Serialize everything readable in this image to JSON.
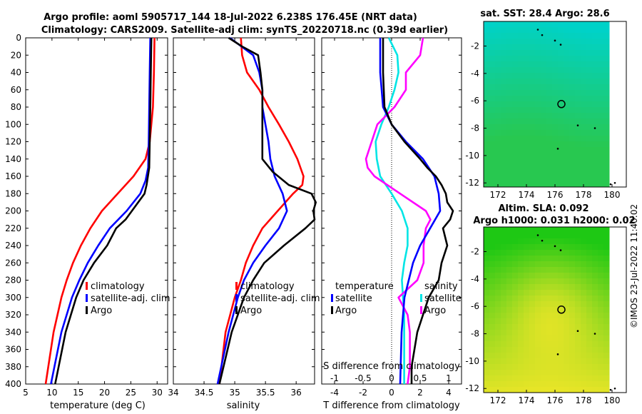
{
  "header": {
    "title_line1": "Argo profile: aoml 5905717_144 18-Jul-2022 6.238S 176.45E (NRT data)",
    "title_line2": "Climatology: CARS2009. Satellite-adj clim: synTS_20220718.nc (0.39d earlier)"
  },
  "colors": {
    "climatology": "#ff0000",
    "satellite": "#0000ff",
    "argo": "#000000",
    "s_clim": "#ff00ff",
    "s_sat": "#00e5e5"
  },
  "depth_ticks": [
    "0",
    "20",
    "40",
    "60",
    "80",
    "100",
    "120",
    "140",
    "160",
    "180",
    "200",
    "220",
    "240",
    "260",
    "280",
    "300",
    "320",
    "340",
    "360",
    "380",
    "400"
  ],
  "chart_data": [
    {
      "type": "line",
      "panel": "temperature",
      "xlabel": "temperature (deg C)",
      "ylabel": "depth",
      "xlim": [
        5,
        32
      ],
      "ylim": [
        400,
        0
      ],
      "x_ticks": [
        "5",
        "10",
        "15",
        "20",
        "25",
        "30"
      ],
      "legend": [
        "climatology",
        "satellite-adj. clim",
        "Argo"
      ],
      "series": [
        {
          "name": "climatology",
          "depth": [
            0,
            40,
            80,
            120,
            140,
            160,
            180,
            200,
            220,
            240,
            260,
            280,
            300,
            340,
            400
          ],
          "values": [
            29.5,
            29.4,
            29.2,
            28.6,
            27.8,
            25.5,
            22.5,
            19.5,
            17.3,
            15.5,
            14.0,
            12.8,
            11.8,
            10.3,
            8.8
          ]
        },
        {
          "name": "satellite-adj. clim",
          "depth": [
            0,
            40,
            80,
            120,
            150,
            165,
            180,
            200,
            220,
            240,
            260,
            280,
            300,
            340,
            400
          ],
          "values": [
            28.7,
            28.6,
            28.5,
            28.4,
            28.3,
            27.8,
            26.8,
            24.2,
            21.0,
            18.8,
            16.8,
            15.2,
            13.8,
            11.8,
            9.8
          ]
        },
        {
          "name": "Argo",
          "depth": [
            0,
            40,
            80,
            120,
            150,
            170,
            180,
            200,
            210,
            220,
            240,
            260,
            280,
            300,
            340,
            400
          ],
          "values": [
            28.9,
            28.8,
            28.7,
            28.6,
            28.5,
            28.0,
            27.6,
            25.2,
            24.0,
            22.2,
            20.5,
            18.0,
            16.0,
            14.6,
            12.6,
            10.6
          ]
        }
      ]
    },
    {
      "type": "line",
      "panel": "salinity",
      "xlabel": "salinity",
      "ylabel": "depth",
      "xlim": [
        34.0,
        36.3
      ],
      "ylim": [
        400,
        0
      ],
      "x_ticks": [
        "34",
        "34.5",
        "35",
        "35.5",
        "36"
      ],
      "legend": [
        "climatology",
        "satellite-adj. clim",
        "Argo"
      ],
      "series": [
        {
          "name": "climatology",
          "depth": [
            0,
            20,
            40,
            60,
            80,
            100,
            120,
            140,
            160,
            170,
            180,
            200,
            220,
            240,
            260,
            280,
            300,
            340,
            400
          ],
          "values": [
            35.1,
            35.12,
            35.2,
            35.4,
            35.55,
            35.72,
            35.88,
            36.02,
            36.12,
            36.1,
            35.95,
            35.7,
            35.45,
            35.3,
            35.18,
            35.1,
            35.0,
            34.85,
            34.75
          ]
        },
        {
          "name": "satellite-adj. clim",
          "depth": [
            0,
            20,
            40,
            60,
            80,
            100,
            120,
            140,
            160,
            180,
            200,
            220,
            240,
            260,
            280,
            300,
            340,
            400
          ],
          "values": [
            34.92,
            35.3,
            35.4,
            35.45,
            35.45,
            35.5,
            35.55,
            35.58,
            35.65,
            35.78,
            35.85,
            35.72,
            35.5,
            35.3,
            35.15,
            35.05,
            34.9,
            34.72
          ]
        },
        {
          "name": "Argo",
          "depth": [
            0,
            10,
            20,
            40,
            60,
            80,
            100,
            120,
            140,
            155,
            170,
            180,
            190,
            200,
            210,
            220,
            240,
            260,
            280,
            300,
            340,
            400
          ],
          "values": [
            34.9,
            35.12,
            35.38,
            35.42,
            35.45,
            35.45,
            35.45,
            35.45,
            35.45,
            35.62,
            35.88,
            36.25,
            36.32,
            36.28,
            36.3,
            36.15,
            35.8,
            35.48,
            35.3,
            35.15,
            34.95,
            34.75
          ]
        }
      ]
    },
    {
      "type": "line",
      "panel": "difference",
      "xlabel": "T difference from climatology",
      "xlabel_top": "S difference from climatology",
      "ylabel": "depth",
      "xlim": [
        -4.9,
        4.9
      ],
      "ylim": [
        400,
        0
      ],
      "x_ticks": [
        "-4",
        "-2",
        "0",
        "2",
        "4"
      ],
      "x_ticks_top": [
        "-1",
        "-0.5",
        "0",
        "0.5",
        "1"
      ],
      "legend": [
        "temperature",
        "satellite",
        "Argo",
        "salinity",
        "satellite",
        "Argo"
      ],
      "series": [
        {
          "name": "T satellite",
          "depth": [
            0,
            40,
            80,
            100,
            120,
            140,
            160,
            180,
            200,
            220,
            240,
            260,
            280,
            300,
            340,
            400
          ],
          "values": [
            -0.8,
            -0.8,
            -0.6,
            0.0,
            1.0,
            2.2,
            3.0,
            3.3,
            3.4,
            2.7,
            2.0,
            1.5,
            1.2,
            0.9,
            0.7,
            0.6
          ]
        },
        {
          "name": "T Argo",
          "depth": [
            0,
            40,
            80,
            100,
            120,
            140,
            150,
            160,
            170,
            180,
            190,
            200,
            210,
            220,
            240,
            260,
            280,
            300,
            320,
            340,
            360,
            380,
            400
          ],
          "values": [
            -0.6,
            -0.6,
            -0.5,
            0.0,
            0.9,
            2.0,
            2.5,
            3.1,
            3.5,
            3.8,
            3.9,
            4.3,
            4.1,
            3.6,
            3.9,
            3.5,
            3.3,
            2.6,
            2.2,
            1.8,
            1.6,
            1.4,
            1.4
          ]
        },
        {
          "name": "S satellite",
          "depth": [
            0,
            20,
            40,
            60,
            80,
            100,
            120,
            140,
            160,
            180,
            200,
            220,
            240,
            260,
            280,
            300,
            320,
            360,
            400
          ],
          "values": [
            -0.05,
            0.1,
            0.12,
            0.05,
            -0.05,
            -0.18,
            -0.28,
            -0.26,
            -0.2,
            0.0,
            0.18,
            0.28,
            0.28,
            0.22,
            0.18,
            0.2,
            0.22,
            0.22,
            0.22
          ]
        },
        {
          "name": "S Argo",
          "depth": [
            0,
            20,
            40,
            60,
            80,
            100,
            120,
            140,
            150,
            160,
            180,
            200,
            210,
            220,
            240,
            260,
            280,
            300,
            320,
            340,
            380,
            400
          ],
          "values": [
            0.55,
            0.5,
            0.25,
            0.25,
            0.05,
            -0.25,
            -0.35,
            -0.45,
            -0.42,
            -0.3,
            0.15,
            0.6,
            0.68,
            0.6,
            0.56,
            0.56,
            0.45,
            0.12,
            0.28,
            0.32,
            0.32,
            0.28
          ]
        }
      ]
    },
    {
      "type": "heatmap",
      "panel": "sst_map",
      "title": "sat. SST: 28.4 Argo: 28.6",
      "x_ticks": [
        "172",
        "174",
        "176",
        "178",
        "180"
      ],
      "y_ticks": [
        "-2",
        "-4",
        "-6",
        "-8",
        "-10",
        "-12"
      ],
      "xlim": [
        171.0,
        181.0
      ],
      "ylim": [
        -12.3,
        -0.2
      ],
      "float_position": [
        176.45,
        -6.238
      ]
    },
    {
      "type": "heatmap",
      "panel": "sla_map",
      "title": "Altim. SLA: 0.092",
      "subtitle": "Argo h1000: 0.031 h2000: 0.02",
      "x_ticks": [
        "172",
        "174",
        "176",
        "178",
        "180"
      ],
      "y_ticks": [
        "-2",
        "-4",
        "-6",
        "-8",
        "-10",
        "-12"
      ],
      "xlim": [
        171.0,
        181.0
      ],
      "ylim": [
        -12.3,
        -0.2
      ],
      "float_position": [
        176.45,
        -6.238
      ]
    }
  ],
  "copyright": "©IMOS 23-Jul-2022 11:40:02"
}
